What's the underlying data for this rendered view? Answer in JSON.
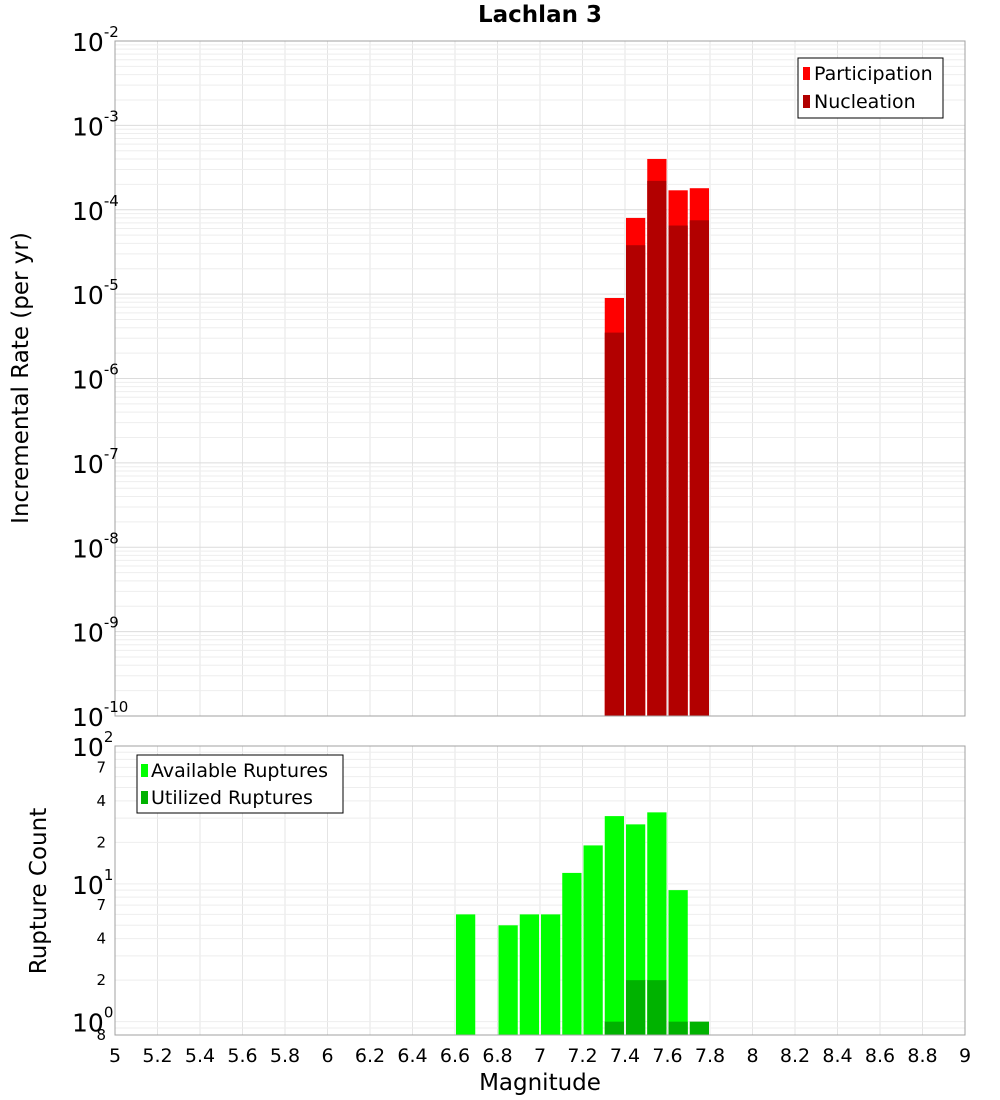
{
  "chart_data": [
    {
      "type": "bar",
      "title": "Lachlan 3",
      "xlabel": "",
      "ylabel": "Incremental Rate (per yr)",
      "xlim": [
        5,
        9
      ],
      "ylim": [
        1e-10,
        0.01
      ],
      "yscale": "log",
      "grid": true,
      "legend_position": "top-right",
      "bin_width": 0.1,
      "y_tick_bases": [
        "10",
        "10",
        "10",
        "10",
        "10",
        "10",
        "10",
        "10",
        "10"
      ],
      "y_tick_exponents": [
        "-10",
        "-9",
        "-8",
        "-7",
        "-6",
        "-5",
        "-4",
        "-3",
        "-2"
      ],
      "x": [
        7.35,
        7.45,
        7.55,
        7.65,
        7.75
      ],
      "series": [
        {
          "name": "Participation",
          "color": "#ff0000",
          "values": [
            9e-06,
            8e-05,
            0.0004,
            0.00017,
            0.00018
          ]
        },
        {
          "name": "Nucleation",
          "color": "#b20000",
          "values": [
            3.5e-06,
            3.8e-05,
            0.00022,
            6.5e-05,
            7.5e-05
          ]
        }
      ]
    },
    {
      "type": "bar",
      "title": "",
      "xlabel": "Magnitude",
      "ylabel": "Rupture Count",
      "xlim": [
        5,
        9
      ],
      "ylim": [
        0.8,
        100
      ],
      "yscale": "log",
      "grid": true,
      "legend_position": "top-left",
      "bin_width": 0.1,
      "x_tick_labels": [
        "5",
        "5.2",
        "5.4",
        "5.6",
        "5.8",
        "6",
        "6.2",
        "6.4",
        "6.6",
        "6.8",
        "7",
        "7.2",
        "7.4",
        "7.6",
        "7.8",
        "8",
        "8.2",
        "8.4",
        "8.6",
        "8.8",
        "9"
      ],
      "y_major_ticks": [
        {
          "base": "10",
          "exp": "0"
        },
        {
          "base": "10",
          "exp": "1"
        },
        {
          "base": "10",
          "exp": "2"
        }
      ],
      "y_minor_ticks": [
        {
          "value": 0.8,
          "label": "8"
        },
        {
          "value": 2,
          "label": "2"
        },
        {
          "value": 4,
          "label": "4"
        },
        {
          "value": 7,
          "label": "7"
        },
        {
          "value": 20,
          "label": "2"
        },
        {
          "value": 40,
          "label": "4"
        },
        {
          "value": 70,
          "label": "7"
        }
      ],
      "series": [
        {
          "name": "Available Ruptures",
          "color": "#00ff00",
          "x": [
            6.65,
            6.85,
            6.95,
            7.05,
            7.15,
            7.25,
            7.35,
            7.45,
            7.55,
            7.65
          ],
          "values": [
            6,
            5,
            6,
            6,
            12,
            19,
            31,
            27,
            33,
            9
          ]
        },
        {
          "name": "Utilized Ruptures",
          "color": "#00b200",
          "x": [
            7.35,
            7.45,
            7.55,
            7.65,
            7.75
          ],
          "values": [
            1,
            2,
            2,
            1,
            1
          ]
        }
      ]
    }
  ]
}
